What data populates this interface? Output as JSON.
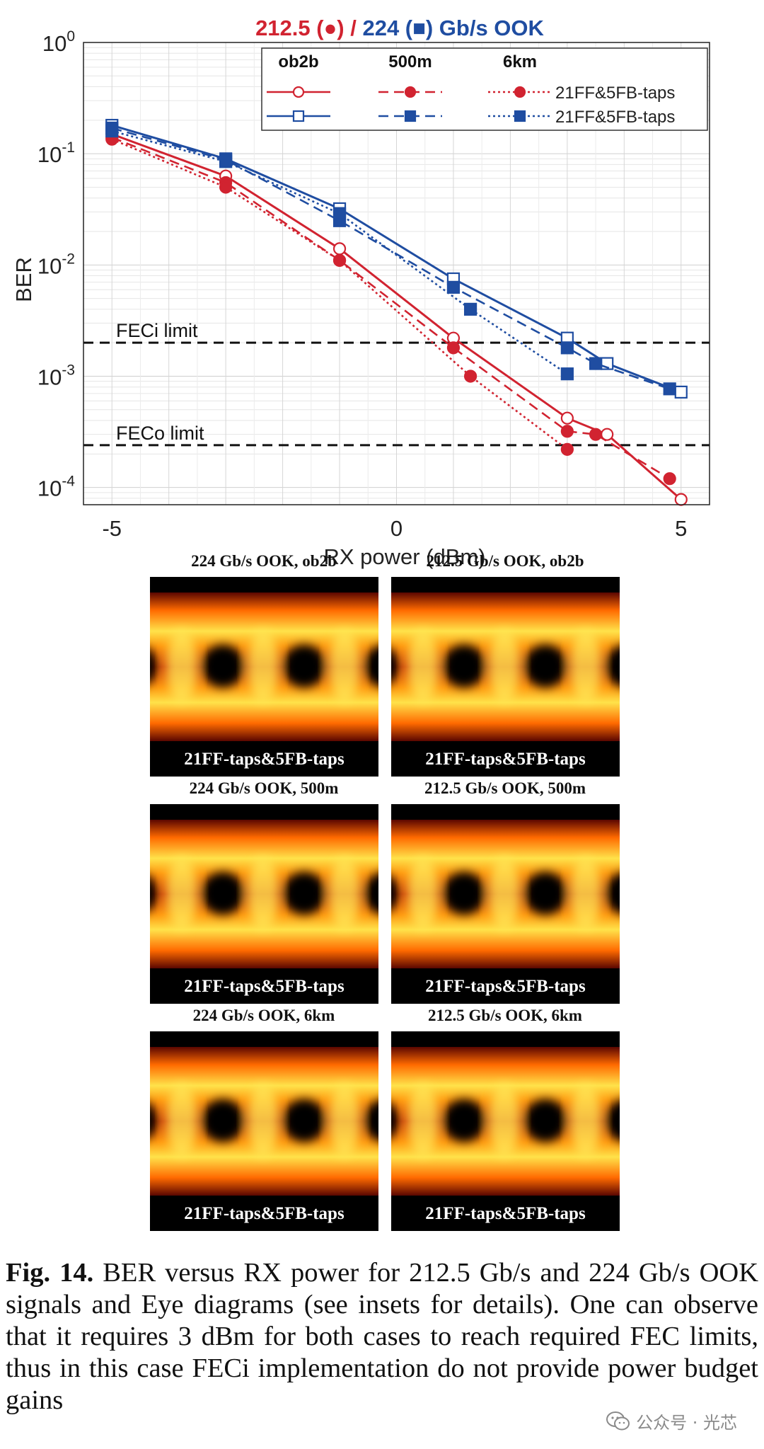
{
  "chart_data": {
    "type": "line",
    "title": "212.5 (●) / 224 (■) Gb/s OOK",
    "title_parts": {
      "red": "212.5 (●)",
      "sep": " / ",
      "blue": "224 (■) Gb/s OOK"
    },
    "xlabel": "RX power (dBm)",
    "ylabel": "BER",
    "xlim": [
      -5.5,
      5.5
    ],
    "ylim": [
      7e-05,
      1
    ],
    "yscale": "log",
    "xticks": [
      "-5",
      "0",
      "5"
    ],
    "yticks": [
      {
        "base": "10",
        "exp": "0"
      },
      {
        "base": "10",
        "exp": "-1"
      },
      {
        "base": "10",
        "exp": "-2"
      },
      {
        "base": "10",
        "exp": "-3"
      },
      {
        "base": "10",
        "exp": "-4"
      }
    ],
    "grid": true,
    "legend": {
      "placement": "top-right",
      "headers": [
        "ob2b",
        "500m",
        "6km"
      ],
      "row_labels": [
        "21FF&5FB-taps",
        "21FF&5FB-taps"
      ]
    },
    "reference_lines": [
      {
        "label": "FECi limit",
        "y": 0.002
      },
      {
        "label": "FECo limit",
        "y": 0.00024
      }
    ],
    "series": [
      {
        "name": "ob2b",
        "rate": "212.5",
        "color": "#d12330",
        "style": "solid",
        "marker": "circle-open",
        "x": [
          -5,
          -3,
          -1,
          1,
          3,
          3.7,
          5
        ],
        "y": [
          0.15,
          0.063,
          0.014,
          0.0022,
          0.00042,
          0.0003,
          7.8e-05
        ]
      },
      {
        "name": "500m",
        "rate": "212.5",
        "color": "#d12330",
        "style": "dashed",
        "marker": "circle-filled",
        "x": [
          -5,
          -3,
          -1,
          1,
          3,
          3.5,
          4.8
        ],
        "y": [
          0.14,
          0.055,
          0.011,
          0.0018,
          0.00032,
          0.0003,
          0.00012
        ]
      },
      {
        "name": "6km",
        "rate": "212.5",
        "color": "#d12330",
        "style": "dotted",
        "marker": "circle-filled",
        "x": [
          -5,
          -3,
          -1,
          1.3,
          3
        ],
        "y": [
          0.135,
          0.05,
          0.011,
          0.001,
          0.00022
        ]
      },
      {
        "name": "ob2b",
        "rate": "224",
        "color": "#1f4da1",
        "style": "solid",
        "marker": "square-open",
        "x": [
          -5,
          -3,
          -1,
          1,
          3,
          3.7,
          5
        ],
        "y": [
          0.18,
          0.09,
          0.032,
          0.0075,
          0.0022,
          0.0013,
          0.00072
        ]
      },
      {
        "name": "500m",
        "rate": "224",
        "color": "#1f4da1",
        "style": "dashed",
        "marker": "square-filled",
        "x": [
          -5,
          -3,
          -1,
          1,
          3,
          3.5,
          4.8
        ],
        "y": [
          0.17,
          0.088,
          0.025,
          0.0063,
          0.0018,
          0.0013,
          0.00077
        ]
      },
      {
        "name": "6km",
        "rate": "224",
        "color": "#1f4da1",
        "style": "dotted",
        "marker": "square-filled",
        "x": [
          -5,
          -3,
          -1,
          1.3,
          3
        ],
        "y": [
          0.16,
          0.085,
          0.029,
          0.004,
          0.00105
        ]
      }
    ]
  },
  "eyes": [
    {
      "title": "224 Gb/s OOK, ob2b",
      "caption": "21FF-taps&5FB-taps"
    },
    {
      "title": "212.5 Gb/s OOK, ob2b",
      "caption": "21FF-taps&5FB-taps"
    },
    {
      "title": "224 Gb/s OOK, 500m",
      "caption": "21FF-taps&5FB-taps"
    },
    {
      "title": "212.5 Gb/s OOK, 500m",
      "caption": "21FF-taps&5FB-taps"
    },
    {
      "title": "224 Gb/s OOK, 6km",
      "caption": "21FF-taps&5FB-taps"
    },
    {
      "title": "212.5 Gb/s OOK, 6km",
      "caption": "21FF-taps&5FB-taps"
    }
  ],
  "caption": {
    "label": "Fig. 14.",
    "text": " BER versus RX power for 212.5 Gb/s and 224 Gb/s OOK signals and Eye diagrams (see insets for details). One can observe that it requires 3 dBm for both cases to reach required FEC limits, thus in this case FECi implementation do not provide power budget gains"
  },
  "watermark": {
    "text": "公众号 · 光芯",
    "icon": "wechat-icon"
  },
  "colors": {
    "red": "#d12330",
    "blue": "#1f4da1"
  }
}
